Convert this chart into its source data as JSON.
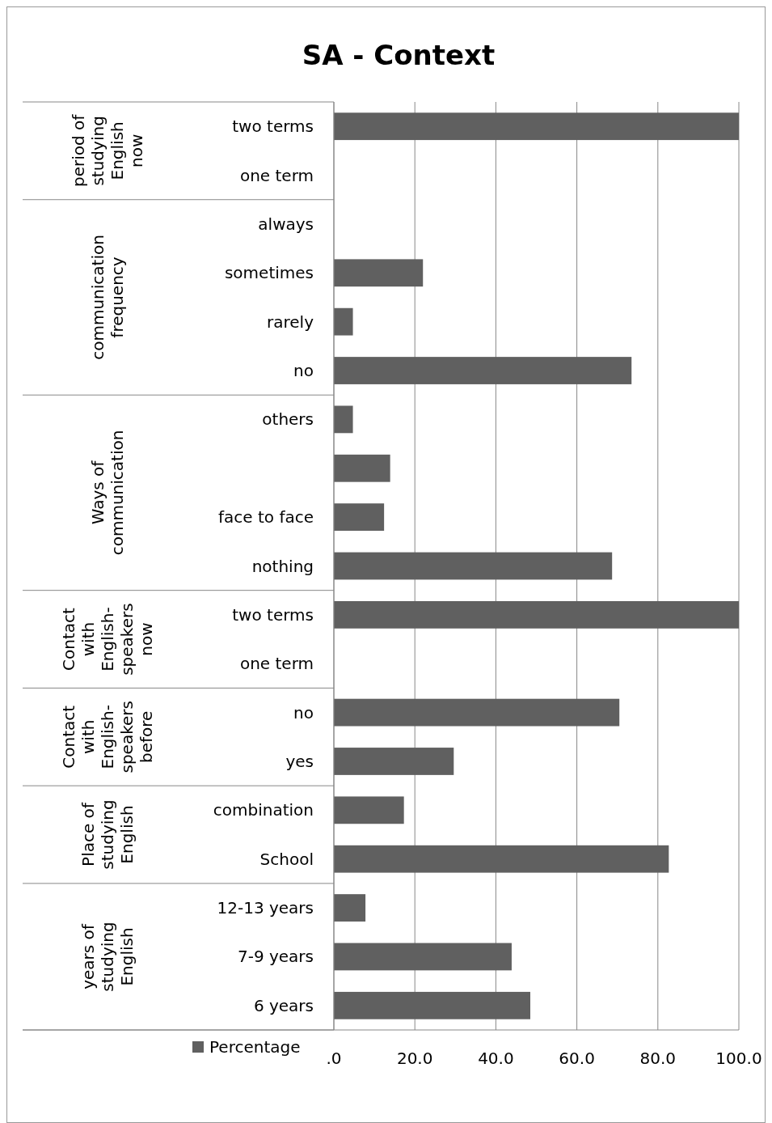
{
  "chart_data": {
    "type": "bar",
    "orientation": "horizontal",
    "title": "SA - Context",
    "categories": [
      "two terms",
      "one term",
      "always",
      "sometimes",
      "rarely",
      "no",
      "others",
      null,
      "face to face",
      "nothing",
      "two terms",
      "one term",
      "no",
      "yes",
      "combination",
      "School",
      "12-13 years",
      "7-9 years",
      "6 years"
    ],
    "series": [
      {
        "name": "Percentage",
        "color": "#606060",
        "values": [
          100,
          0,
          0,
          22,
          4.7,
          73.5,
          4.7,
          13.9,
          12.4,
          68.7,
          100,
          0,
          70.5,
          29.6,
          17.3,
          82.7,
          7.8,
          43.9,
          48.5
        ]
      }
    ],
    "annotations": [
      "period of studying English now",
      "communication frequency",
      "Ways of communication",
      "Contact with English-speakers now",
      "Contact with English-speakers before",
      "Place of studying English",
      "years of studying English"
    ],
    "xlim": [
      0,
      100
    ],
    "xticks": [
      {
        "value": 0,
        "label": ".0"
      },
      {
        "value": 20,
        "label": "20.0"
      },
      {
        "value": 40,
        "label": "40.0"
      },
      {
        "value": 60,
        "label": "60.0"
      },
      {
        "value": 80,
        "label": "80.0"
      },
      {
        "value": 100,
        "label": "100.0"
      }
    ],
    "grid": "x",
    "legend": "bottom"
  }
}
